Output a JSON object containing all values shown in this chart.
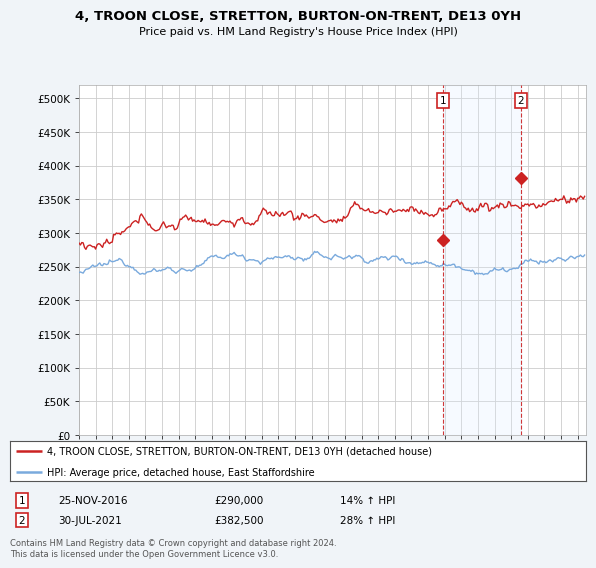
{
  "title": "4, TROON CLOSE, STRETTON, BURTON-ON-TRENT, DE13 0YH",
  "subtitle": "Price paid vs. HM Land Registry's House Price Index (HPI)",
  "ylabel_ticks": [
    "£0",
    "£50K",
    "£100K",
    "£150K",
    "£200K",
    "£250K",
    "£300K",
    "£350K",
    "£400K",
    "£450K",
    "£500K"
  ],
  "ytick_values": [
    0,
    50000,
    100000,
    150000,
    200000,
    250000,
    300000,
    350000,
    400000,
    450000,
    500000
  ],
  "ylim": [
    0,
    520000
  ],
  "xlim_start": 1995.0,
  "xlim_end": 2025.5,
  "hpi_color": "#7aaadd",
  "price_color": "#cc2222",
  "sale1_x": 2016.92,
  "sale1_y": 290000,
  "sale1_label": "1",
  "sale2_x": 2021.58,
  "sale2_y": 382500,
  "sale2_label": "2",
  "shade_color": "#ddeeff",
  "annotation1_date": "25-NOV-2016",
  "annotation1_price": "£290,000",
  "annotation1_hpi": "14% ↑ HPI",
  "annotation2_date": "30-JUL-2021",
  "annotation2_price": "£382,500",
  "annotation2_hpi": "28% ↑ HPI",
  "legend_line1": "4, TROON CLOSE, STRETTON, BURTON-ON-TRENT, DE13 0YH (detached house)",
  "legend_line2": "HPI: Average price, detached house, East Staffordshire",
  "footnote": "Contains HM Land Registry data © Crown copyright and database right 2024.\nThis data is licensed under the Open Government Licence v3.0.",
  "bg_color": "#f0f4f8",
  "plot_bg_color": "#ffffff",
  "grid_color": "#cccccc"
}
